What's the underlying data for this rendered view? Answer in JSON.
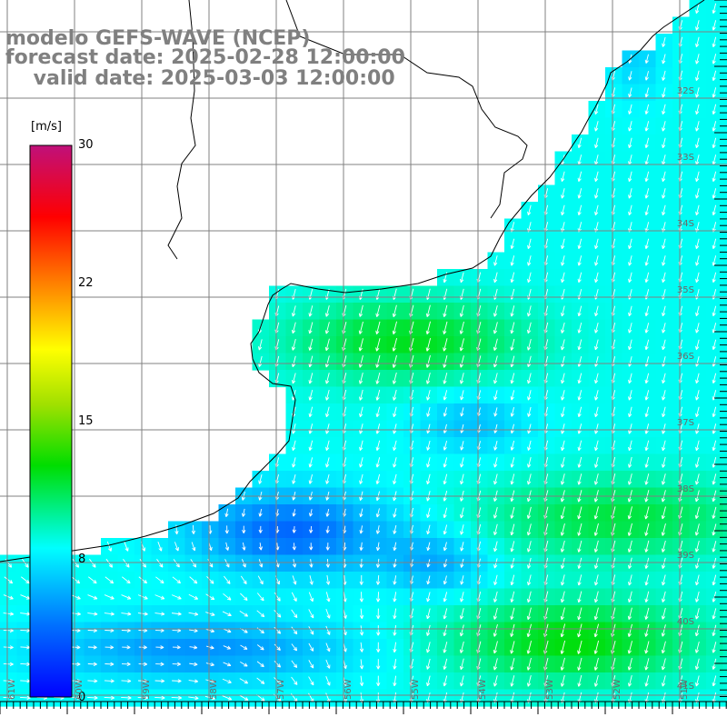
{
  "title": {
    "line1": "modelo GEFS-WAVE (NCEP)",
    "line2": "forecast date: 2025-02-28 12:00:00",
    "line3": "    valid date: 2025-03-03 12:00:00"
  },
  "colorbar": {
    "unit": "[m/s]",
    "ticks": [
      "30",
      "22",
      "15",
      "8",
      "0"
    ],
    "colors": [
      "#c0107a",
      "#ff0000",
      "#ff8c00",
      "#ffff00",
      "#00dd00",
      "#00ffff",
      "#00a0ff",
      "#0000ff"
    ]
  },
  "map": {
    "variable": "wind speed and direction",
    "land_color": "#ffffff",
    "grid_color": "#808080",
    "coastline_color": "#000000",
    "lat_labels": [
      "32S",
      "33S",
      "34S",
      "35S",
      "36S",
      "37S",
      "38S",
      "39S",
      "40S",
      "41S"
    ],
    "lon_labels": [
      "61W",
      "60W",
      "59W",
      "58W",
      "57W",
      "56W",
      "55W",
      "54W",
      "53W",
      "52W",
      "51W"
    ]
  }
}
